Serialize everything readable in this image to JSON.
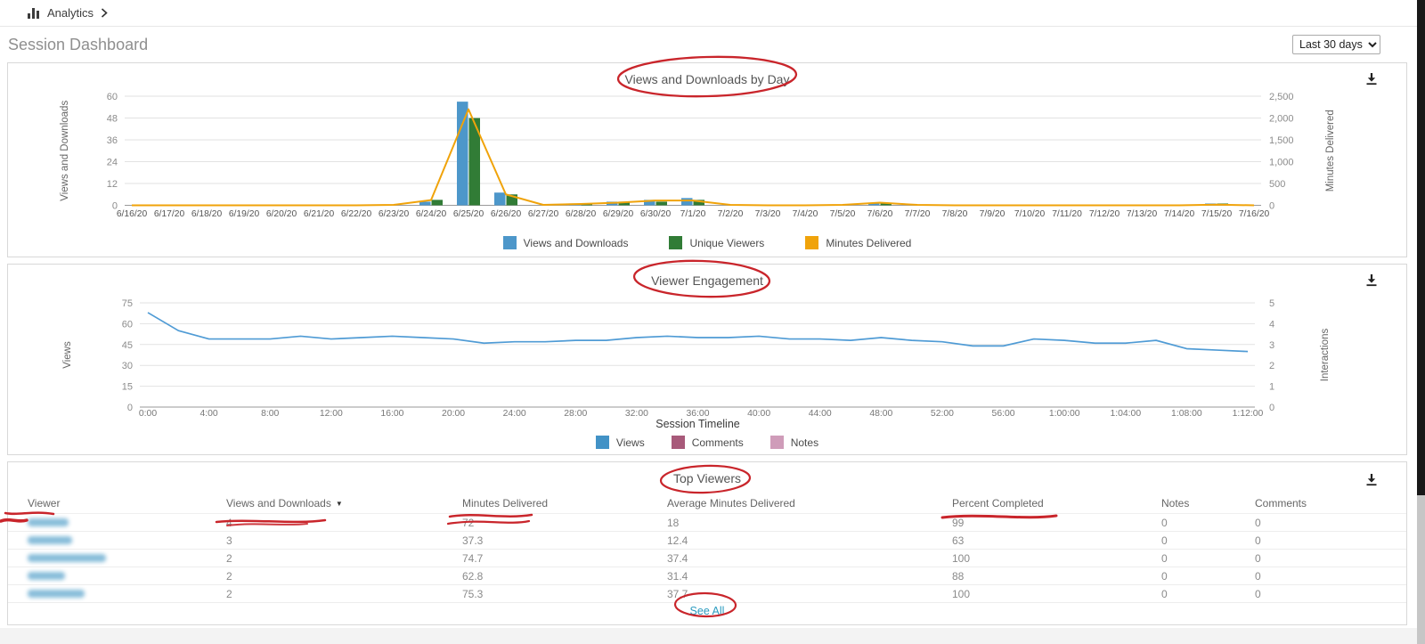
{
  "breadcrumb": {
    "label": "Analytics"
  },
  "page": {
    "title": "Session Dashboard",
    "period": "Last 30 days"
  },
  "panels": {
    "chart1_title": "Views and Downloads by Day",
    "chart2_title": "Viewer Engagement",
    "table_title": "Top Viewers"
  },
  "icons": {
    "breadcrumb": "bar-chart-icon",
    "download": "download-icon",
    "sort": "sort-descending-caret",
    "chevron": "breadcrumb-chevron"
  },
  "colors": {
    "views_downloads_blue": "#4d97ca",
    "unique_viewers_green": "#317c36",
    "minutes_delivered_orange": "#f0a30a",
    "engagement_line_blue": "#4f9bd5",
    "comments_mauve": "#a85a7a",
    "notes_pink": "#cf9cb9",
    "pen_annotation_red": "#c9252b",
    "link_teal": "#2a9bbf"
  },
  "chart_data": [
    {
      "type": "bar",
      "subtype": "combo-bar-line",
      "title": "Views and Downloads by Day",
      "categories": [
        "6/16/20",
        "6/17/20",
        "6/18/20",
        "6/19/20",
        "6/20/20",
        "6/21/20",
        "6/22/20",
        "6/23/20",
        "6/24/20",
        "6/25/20",
        "6/26/20",
        "6/27/20",
        "6/28/20",
        "6/29/20",
        "6/30/20",
        "7/1/20",
        "7/2/20",
        "7/3/20",
        "7/4/20",
        "7/5/20",
        "7/6/20",
        "7/7/20",
        "7/8/20",
        "7/9/20",
        "7/10/20",
        "7/11/20",
        "7/12/20",
        "7/13/20",
        "7/14/20",
        "7/15/20",
        "7/16/20"
      ],
      "series": [
        {
          "name": "Views and Downloads",
          "render": "bar",
          "axis": "left",
          "color": "#4d97ca",
          "values": [
            0,
            0,
            0,
            0,
            0,
            0,
            0,
            0,
            2,
            57,
            7,
            0,
            1,
            2,
            3,
            4,
            0,
            0,
            0,
            0,
            1,
            0,
            0,
            0,
            0,
            0,
            0,
            0,
            0,
            1,
            0
          ]
        },
        {
          "name": "Unique Viewers",
          "render": "bar",
          "axis": "left",
          "color": "#317c36",
          "values": [
            0,
            0,
            0,
            0,
            0,
            0,
            0,
            0,
            3,
            48,
            6,
            0,
            1,
            2,
            2,
            3,
            0,
            0,
            0,
            0,
            1,
            0,
            0,
            0,
            0,
            0,
            0,
            0,
            0,
            1,
            0
          ]
        },
        {
          "name": "Minutes Delivered",
          "render": "line",
          "axis": "right",
          "color": "#f0a30a",
          "values": [
            0,
            0,
            0,
            0,
            0,
            0,
            0,
            10,
            120,
            2200,
            250,
            10,
            30,
            60,
            110,
            110,
            10,
            0,
            0,
            10,
            60,
            10,
            0,
            0,
            0,
            0,
            0,
            0,
            0,
            15,
            0
          ]
        }
      ],
      "left_axis": {
        "label": "Views and Downloads",
        "max": 60,
        "ticks": [
          0,
          12,
          24,
          36,
          48,
          60
        ],
        "tick_labels": [
          "0",
          "12",
          "24",
          "36",
          "48",
          "60"
        ]
      },
      "right_axis": {
        "label": "Minutes Delivered",
        "max": 2500,
        "ticks": [
          0,
          500,
          1000,
          1500,
          2000,
          2500
        ],
        "tick_labels": [
          "0",
          "500",
          "1,000",
          "1,500",
          "2,000",
          "2,500"
        ]
      },
      "grid": true,
      "legend_position": "bottom"
    },
    {
      "type": "line",
      "title": "Viewer Engagement",
      "xlabel": "Session Timeline",
      "domain_minutes": 72,
      "sample_interval_minutes": 2,
      "x_tick_labels": [
        "0:00",
        "4:00",
        "8:00",
        "12:00",
        "16:00",
        "20:00",
        "24:00",
        "28:00",
        "32:00",
        "36:00",
        "40:00",
        "44:00",
        "48:00",
        "52:00",
        "56:00",
        "1:00:00",
        "1:04:00",
        "1:08:00",
        "1:12:00"
      ],
      "series": [
        {
          "name": "Views",
          "axis": "left",
          "color": "#4f9bd5",
          "values": [
            68,
            55,
            49,
            49,
            49,
            51,
            49,
            50,
            51,
            50,
            49,
            46,
            47,
            47,
            48,
            48,
            50,
            51,
            50,
            50,
            51,
            49,
            49,
            48,
            50,
            48,
            47,
            44,
            44,
            49,
            48,
            46,
            46,
            48,
            42,
            41,
            40
          ]
        }
      ],
      "legend": [
        {
          "label": "Views",
          "color": "#4292c6"
        },
        {
          "label": "Comments",
          "color": "#a85a7a"
        },
        {
          "label": "Notes",
          "color": "#cf9cb9"
        }
      ],
      "left_axis": {
        "label": "Views",
        "max": 75,
        "ticks": [
          0,
          15,
          30,
          45,
          60,
          75
        ],
        "tick_labels": [
          "0",
          "15",
          "30",
          "45",
          "60",
          "75"
        ]
      },
      "right_axis": {
        "label": "Interactions",
        "max": 5,
        "ticks": [
          0,
          1,
          2,
          3,
          4,
          5
        ],
        "tick_labels": [
          "0",
          "1",
          "2",
          "3",
          "4",
          "5"
        ]
      },
      "grid": true,
      "legend_position": "bottom"
    }
  ],
  "table": {
    "headers": [
      "Viewer",
      "Views and Downloads",
      "Minutes Delivered",
      "Average Minutes Delivered",
      "Percent Completed",
      "Notes",
      "Comments"
    ],
    "sorted_column": "Views and Downloads",
    "sort_caret": "▼",
    "rows": [
      {
        "viewer": "(name blurred)",
        "blur_width": 46,
        "views_and_downloads": "4",
        "minutes_delivered": "72",
        "average_minutes_delivered": "18",
        "percent_completed": "99",
        "notes": "0",
        "comments": "0"
      },
      {
        "viewer": "(name blurred)",
        "blur_width": 50,
        "views_and_downloads": "3",
        "minutes_delivered": "37.3",
        "average_minutes_delivered": "12.4",
        "percent_completed": "63",
        "notes": "0",
        "comments": "0"
      },
      {
        "viewer": "(name blurred)",
        "blur_width": 88,
        "views_and_downloads": "2",
        "minutes_delivered": "74.7",
        "average_minutes_delivered": "37.4",
        "percent_completed": "100",
        "notes": "0",
        "comments": "0"
      },
      {
        "viewer": "(name blurred)",
        "blur_width": 42,
        "views_and_downloads": "2",
        "minutes_delivered": "62.8",
        "average_minutes_delivered": "31.4",
        "percent_completed": "88",
        "notes": "0",
        "comments": "0"
      },
      {
        "viewer": "(name blurred)",
        "blur_width": 64,
        "views_and_downloads": "2",
        "minutes_delivered": "75.3",
        "average_minutes_delivered": "37.7",
        "percent_completed": "100",
        "notes": "0",
        "comments": "0"
      }
    ],
    "see_all": "See All"
  }
}
